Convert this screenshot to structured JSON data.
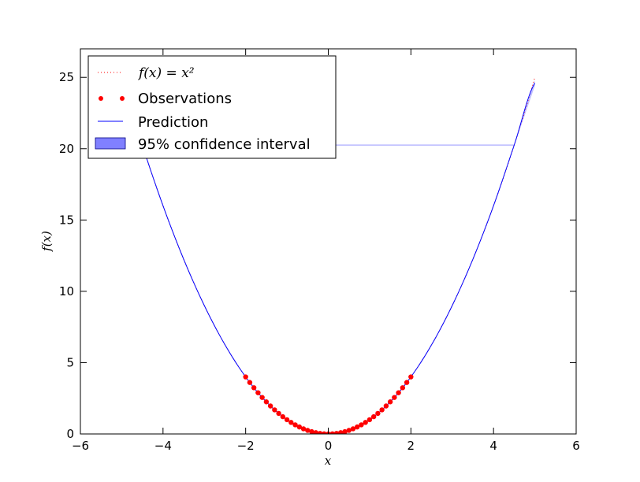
{
  "chart_data": {
    "type": "line",
    "xlabel": "x",
    "ylabel": "f(x)",
    "xlim": [
      -6,
      6
    ],
    "ylim": [
      0,
      27
    ],
    "x_ticks": [
      -6,
      -4,
      -2,
      0,
      2,
      4,
      6
    ],
    "x_tick_labels": [
      "−6",
      "−4",
      "−2",
      "0",
      "2",
      "4",
      "6"
    ],
    "y_ticks": [
      0,
      5,
      10,
      15,
      20,
      25
    ],
    "y_tick_labels": [
      "0",
      "5",
      "10",
      "15",
      "20",
      "25"
    ],
    "grid": false,
    "legend_position": "upper-left",
    "series": [
      {
        "name": "f(x) = x²",
        "kind": "dotted-line",
        "color": "#ff0000",
        "function": "x^2",
        "x_range": [
          -5,
          5
        ]
      },
      {
        "name": "Observations",
        "kind": "scatter",
        "color": "#ff0000",
        "x": [
          -2.0,
          -1.9,
          -1.8,
          -1.7,
          -1.6,
          -1.5,
          -1.4,
          -1.3,
          -1.2,
          -1.1,
          -1.0,
          -0.9,
          -0.8,
          -0.7,
          -0.6,
          -0.5,
          -0.4,
          -0.3,
          -0.2,
          -0.1,
          0.0,
          0.1,
          0.2,
          0.3,
          0.4,
          0.5,
          0.6,
          0.7,
          0.8,
          0.9,
          1.0,
          1.1,
          1.2,
          1.3,
          1.4,
          1.5,
          1.6,
          1.7,
          1.8,
          1.9,
          2.0
        ],
        "y": [
          4.0,
          3.61,
          3.24,
          2.89,
          2.56,
          2.25,
          1.96,
          1.69,
          1.44,
          1.21,
          1.0,
          0.81,
          0.64,
          0.49,
          0.36,
          0.25,
          0.16,
          0.09,
          0.04,
          0.01,
          0.0,
          0.01,
          0.04,
          0.09,
          0.16,
          0.25,
          0.36,
          0.49,
          0.64,
          0.81,
          1.0,
          1.21,
          1.44,
          1.69,
          1.96,
          2.25,
          2.56,
          2.89,
          3.24,
          3.61,
          4.0
        ]
      },
      {
        "name": "Prediction",
        "kind": "line",
        "color": "#0000ff",
        "x": [
          -5.0,
          -4.5,
          -4.0,
          -3.5,
          -3.0,
          -2.5,
          -2.0,
          -1.5,
          -1.0,
          -0.5,
          0.0,
          0.5,
          1.0,
          1.5,
          2.0,
          2.5,
          3.0,
          3.5,
          4.0,
          4.5,
          5.0
        ],
        "y": [
          25.0,
          20.25,
          16.0,
          12.25,
          9.0,
          6.25,
          4.0,
          2.25,
          1.0,
          0.25,
          0.0,
          0.25,
          1.0,
          2.25,
          4.0,
          6.25,
          9.0,
          12.25,
          16.0,
          20.25,
          24.6
        ]
      },
      {
        "name": "95% confidence interval",
        "kind": "band",
        "color": "#0000ff",
        "x": [
          -5.0,
          -4.5,
          4.5,
          5.0
        ],
        "lower": [
          24.8,
          20.2,
          20.2,
          24.4
        ],
        "upper": [
          25.2,
          20.3,
          20.3,
          24.8
        ]
      }
    ]
  }
}
